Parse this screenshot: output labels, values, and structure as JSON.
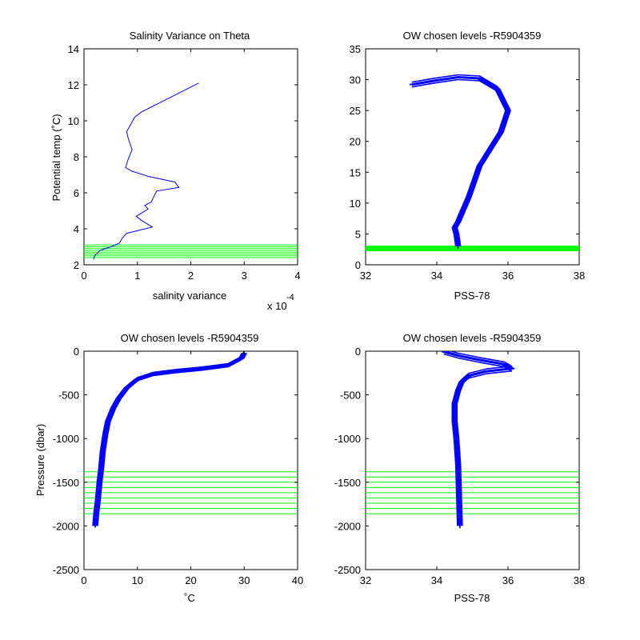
{
  "chart_data": [
    {
      "type": "line",
      "title": "Salinity Variance on Theta",
      "xlabel": "salinity variance",
      "ylabel": "Potential temp (˚C)",
      "x_exponent_label": "x 10",
      "x_exponent_power": "-4",
      "xlim": [
        0,
        0.0004
      ],
      "ylim": [
        2,
        14
      ],
      "xticks": [
        0,
        0.0001,
        0.0002,
        0.0003,
        0.0004
      ],
      "xtick_labels": [
        "0",
        "1",
        "2",
        "3",
        "4"
      ],
      "yticks": [
        2,
        4,
        6,
        8,
        10,
        12,
        14
      ],
      "ytick_labels": [
        "2",
        "4",
        "6",
        "8",
        "10",
        "12",
        "14"
      ],
      "line_color": "#0000ff",
      "reference_color": "#00ff00",
      "series": [
        {
          "x": [
            0.000215,
            0.000108,
            9.5e-05,
            8e-05,
            8.3e-05,
            9e-05,
            8.2e-05,
            7.8e-05,
            9e-05,
            0.000122,
            0.00017,
            0.000178,
            0.000136,
            0.000126,
            0.000114,
            0.00012,
            9.8e-05,
            0.000106,
            0.000128,
            8e-05,
            7.2e-05,
            6.6e-05,
            5e-05,
            3e-05,
            2e-05,
            1.8e-05
          ],
          "y": [
            12.1,
            10.5,
            10.2,
            9.4,
            9.0,
            8.4,
            7.8,
            7.4,
            7.2,
            6.9,
            6.6,
            6.3,
            6.1,
            5.5,
            5.3,
            5.1,
            4.7,
            4.5,
            4.1,
            3.75,
            3.5,
            3.2,
            3.0,
            2.8,
            2.5,
            2.3
          ]
        }
      ],
      "reference_levels": [
        2.4,
        2.5,
        2.6,
        2.7,
        2.8,
        2.9,
        3.0,
        3.1
      ]
    },
    {
      "type": "line",
      "title": "OW chosen levels -R5904359",
      "xlabel": "PSS-78",
      "ylabel": "",
      "xlim": [
        32,
        38
      ],
      "ylim": [
        0,
        35
      ],
      "xticks": [
        32,
        34,
        36,
        38
      ],
      "xtick_labels": [
        "32",
        "34",
        "36",
        "38"
      ],
      "yticks": [
        0,
        5,
        10,
        15,
        20,
        25,
        30,
        35
      ],
      "ytick_labels": [
        "0",
        "5",
        "10",
        "15",
        "20",
        "25",
        "30",
        "35"
      ],
      "line_color": "#0000ff",
      "reference_color": "#00ff00",
      "series": [
        {
          "x": [
            33.3,
            33.9,
            34.6,
            35.2,
            35.7,
            36.0,
            35.8,
            35.2,
            34.9,
            34.6,
            34.5,
            34.55,
            34.6
          ],
          "y": [
            29.2,
            29.8,
            30.4,
            30.2,
            28.5,
            25.0,
            21.5,
            16.0,
            11.0,
            7.0,
            6.0,
            5.0,
            3.0
          ]
        }
      ],
      "band": {
        "x0": 32,
        "x1": 38,
        "y0": 2.2,
        "y1": 3.1
      }
    },
    {
      "type": "line",
      "title": "OW chosen levels -R5904359",
      "xlabel": "˚C",
      "ylabel": "Pressure (dbar)",
      "xlim": [
        0,
        40
      ],
      "ylim": [
        -2500,
        0
      ],
      "xticks": [
        0,
        10,
        20,
        30,
        40
      ],
      "xtick_labels": [
        "0",
        "10",
        "20",
        "30",
        "40"
      ],
      "yticks": [
        -2500,
        -2000,
        -1500,
        -1000,
        -500,
        0
      ],
      "ytick_labels": [
        "-2500",
        "-2000",
        "-1500",
        "-1000",
        "-500",
        "0"
      ],
      "line_color": "#0000ff",
      "reference_color": "#00ff00",
      "series": [
        {
          "x": [
            30.0,
            29.5,
            27.0,
            22.0,
            17.0,
            13.0,
            10.0,
            8.0,
            6.5,
            5.5,
            4.5,
            4.0,
            3.5,
            3.2,
            2.9,
            2.6,
            2.3,
            2.1
          ],
          "y": [
            -20,
            -80,
            -160,
            -200,
            -230,
            -260,
            -320,
            -420,
            -540,
            -650,
            -800,
            -950,
            -1150,
            -1350,
            -1500,
            -1700,
            -1850,
            -2000
          ]
        }
      ],
      "reference_levels": [
        -1380,
        -1440,
        -1500,
        -1560,
        -1620,
        -1680,
        -1740,
        -1800,
        -1860
      ]
    },
    {
      "type": "line",
      "title": "OW chosen levels -R5904359",
      "xlabel": "PSS-78",
      "ylabel": "",
      "xlim": [
        32,
        38
      ],
      "ylim": [
        -2500,
        0
      ],
      "xticks": [
        32,
        34,
        36,
        38
      ],
      "xtick_labels": [
        "32",
        "34",
        "36",
        "38"
      ],
      "yticks": [
        -2500,
        -2000,
        -1500,
        -1000,
        -500,
        0
      ],
      "ytick_labels": [
        "-2500",
        "-2000",
        "-1500",
        "-1000",
        "-500",
        "0"
      ],
      "line_color": "#0000ff",
      "reference_color": "#00ff00",
      "series": [
        {
          "x": [
            34.2,
            34.6,
            35.2,
            35.9,
            36.1,
            35.4,
            34.9,
            34.7,
            34.6,
            34.5,
            34.5,
            34.55,
            34.6,
            34.62,
            34.65
          ],
          "y": [
            -5,
            -50,
            -100,
            -150,
            -200,
            -230,
            -280,
            -350,
            -450,
            -600,
            -800,
            -1000,
            -1300,
            -1600,
            -2000
          ]
        }
      ],
      "reference_levels": [
        -1380,
        -1440,
        -1500,
        -1560,
        -1620,
        -1680,
        -1740,
        -1800,
        -1860
      ]
    }
  ]
}
